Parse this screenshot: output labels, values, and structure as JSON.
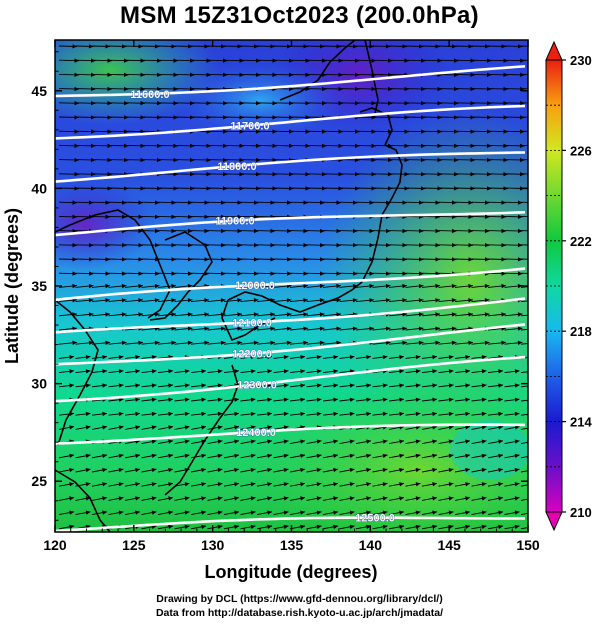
{
  "title": "MSM 15Z31Oct2023 (200.0hPa)",
  "xaxis": {
    "label": "Longitude (degrees)",
    "min": 120,
    "max": 150,
    "ticks": [
      "120",
      "125",
      "130",
      "135",
      "140",
      "145",
      "150"
    ]
  },
  "yaxis": {
    "label": "Latitude  (degrees)",
    "min": 22.4,
    "max": 47.6,
    "ticks": [
      "25",
      "30",
      "35",
      "40",
      "45"
    ]
  },
  "colorbar": {
    "min": 210,
    "max": 230,
    "ticks": [
      "210",
      "214",
      "218",
      "222",
      "226",
      "230"
    ]
  },
  "contours": [
    {
      "label": "11600.0",
      "lat": 45.4
    },
    {
      "label": "11700.0",
      "lat": 43.4
    },
    {
      "label": "11800.0",
      "lat": 41.2
    },
    {
      "label": "11900.0",
      "lat": 38.3
    },
    {
      "label": "12000.0",
      "lat": 34.8
    },
    {
      "label": "12100.0",
      "lat": 33.1
    },
    {
      "label": "12200.0",
      "lat": 31.6
    },
    {
      "label": "12300.0",
      "lat": 29.9
    },
    {
      "label": "12400.0",
      "lat": 27.8
    },
    {
      "label": "12500.0",
      "lat": 23.2
    }
  ],
  "colors": {
    "frame": "#000000",
    "contour": "#ffffff",
    "vector": "#000000"
  },
  "credits": [
    "Drawing by DCL (https://www.gfd-dennou.org/library/dcl/)",
    "Data from http://database.rish.kyoto-u.ac.jp/arch/jmadata/"
  ]
}
